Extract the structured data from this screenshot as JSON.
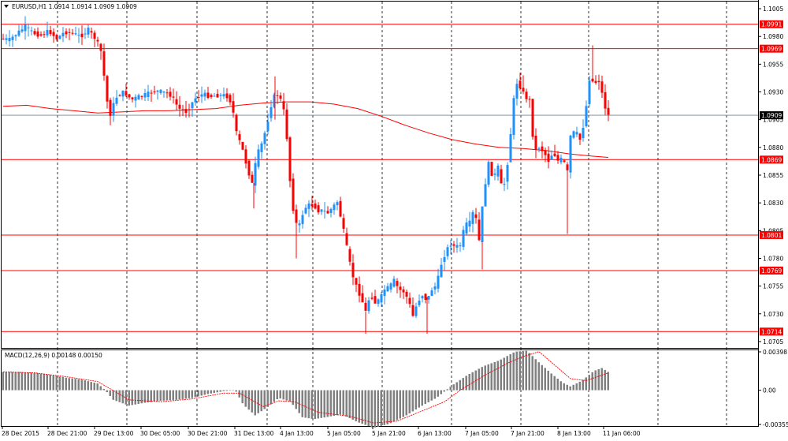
{
  "window_title": "EURUSD,H1  1.0914 1.0914 1.0909 1.0909",
  "chart_data": [
    {
      "type": "candlestick",
      "symbol": "EURUSD,H1",
      "ohlc_label": "1.0914 1.0914 1.0909 1.0909",
      "ylim": [
        1.07,
        1.101
      ],
      "y_ticks": [
        "1.1005",
        "1.0980",
        "1.0955",
        "1.0930",
        "1.0905",
        "1.0880",
        "1.0855",
        "1.0830",
        "1.0805",
        "1.0780",
        "1.0755",
        "1.0730",
        "1.0705"
      ],
      "x_labels": [
        "28 Dec 2015",
        "28 Dec 21:00",
        "29 Dec 13:00",
        "30 Dec 05:00",
        "30 Dec 21:00",
        "31 Dec 13:00",
        "4 Jan 13:00",
        "5 Jan 05:00",
        "5 Jan 21:00",
        "6 Jan 13:00",
        "7 Jan 05:00",
        "7 Jan 21:00",
        "8 Jan 13:00",
        "11 Jan 06:00"
      ],
      "levels": [
        {
          "value": 1.0991,
          "label": "1.0991",
          "color": "#ff0000"
        },
        {
          "value": 1.0969,
          "label": "1.0969",
          "color": "#ff0000"
        },
        {
          "value": 1.0869,
          "label": "1.0869",
          "color": "#ff0000"
        },
        {
          "value": 1.0801,
          "label": "1.0801",
          "color": "#ff0000"
        },
        {
          "value": 1.0769,
          "label": "1.0769",
          "color": "#ff0000"
        },
        {
          "value": 1.0714,
          "label": "1.0714",
          "color": "#ff0000"
        }
      ],
      "current_price": {
        "value": 1.0909,
        "label": "1.0909"
      },
      "moving_average_path": [
        [
          0,
          1.0917
        ],
        [
          30,
          1.0918
        ],
        [
          60,
          1.0915
        ],
        [
          90,
          1.0913
        ],
        [
          120,
          1.0911
        ],
        [
          150,
          1.0912
        ],
        [
          180,
          1.0913
        ],
        [
          210,
          1.0913
        ],
        [
          240,
          1.0914
        ],
        [
          270,
          1.0915
        ],
        [
          300,
          1.0918
        ],
        [
          330,
          1.092
        ],
        [
          360,
          1.0921
        ],
        [
          390,
          1.0921
        ],
        [
          420,
          1.0919
        ],
        [
          450,
          1.0915
        ],
        [
          480,
          1.0908
        ],
        [
          510,
          1.09
        ],
        [
          540,
          1.0893
        ],
        [
          570,
          1.0887
        ],
        [
          600,
          1.0883
        ],
        [
          630,
          1.088
        ],
        [
          660,
          1.0879
        ],
        [
          690,
          1.0877
        ],
        [
          720,
          1.0874
        ],
        [
          750,
          1.0872
        ],
        [
          768,
          1.0871
        ]
      ],
      "price_path": [
        [
          0,
          1.0978
        ],
        [
          10,
          1.0977
        ],
        [
          20,
          1.0983
        ],
        [
          30,
          1.0989
        ],
        [
          40,
          1.0983
        ],
        [
          50,
          1.0981
        ],
        [
          60,
          1.0985
        ],
        [
          70,
          1.0978
        ],
        [
          80,
          1.0984
        ],
        [
          90,
          1.0983
        ],
        [
          100,
          1.098
        ],
        [
          110,
          1.0986
        ],
        [
          120,
          1.0977
        ],
        [
          127,
          1.0965
        ],
        [
          133,
          1.0924
        ],
        [
          138,
          1.091
        ],
        [
          145,
          1.0925
        ],
        [
          155,
          1.093
        ],
        [
          165,
          1.0923
        ],
        [
          175,
          1.0926
        ],
        [
          185,
          1.0928
        ],
        [
          195,
          1.0931
        ],
        [
          205,
          1.093
        ],
        [
          215,
          1.0927
        ],
        [
          225,
          1.0915
        ],
        [
          235,
          1.0912
        ],
        [
          245,
          1.0924
        ],
        [
          255,
          1.0928
        ],
        [
          265,
          1.0926
        ],
        [
          275,
          1.0927
        ],
        [
          285,
          1.0927
        ],
        [
          292,
          1.092
        ],
        [
          298,
          1.0893
        ],
        [
          305,
          1.088
        ],
        [
          312,
          1.0861
        ],
        [
          318,
          1.0847
        ],
        [
          324,
          1.0873
        ],
        [
          330,
          1.0883
        ],
        [
          336,
          1.0898
        ],
        [
          342,
          1.0918
        ],
        [
          348,
          1.093
        ],
        [
          354,
          1.0923
        ],
        [
          360,
          1.0908
        ],
        [
          366,
          1.085
        ],
        [
          372,
          1.0812
        ],
        [
          378,
          1.081
        ],
        [
          384,
          1.0825
        ],
        [
          390,
          1.0828
        ],
        [
          396,
          1.0828
        ],
        [
          402,
          1.0823
        ],
        [
          408,
          1.0823
        ],
        [
          414,
          1.0821
        ],
        [
          420,
          1.0826
        ],
        [
          426,
          1.0831
        ],
        [
          432,
          1.0812
        ],
        [
          438,
          1.079
        ],
        [
          444,
          1.0768
        ],
        [
          450,
          1.0755
        ],
        [
          456,
          1.0745
        ],
        [
          462,
          1.0732
        ],
        [
          468,
          1.0748
        ],
        [
          474,
          1.074
        ],
        [
          480,
          1.0743
        ],
        [
          486,
          1.0752
        ],
        [
          492,
          1.0754
        ],
        [
          498,
          1.076
        ],
        [
          504,
          1.0752
        ],
        [
          510,
          1.075
        ],
        [
          516,
          1.0743
        ],
        [
          522,
          1.0728
        ],
        [
          528,
          1.0741
        ],
        [
          534,
          1.0747
        ],
        [
          540,
          1.0742
        ],
        [
          546,
          1.0752
        ],
        [
          552,
          1.0756
        ],
        [
          558,
          1.0775
        ],
        [
          564,
          1.0787
        ],
        [
          570,
          1.0793
        ],
        [
          576,
          1.079
        ],
        [
          582,
          1.0792
        ],
        [
          588,
          1.081
        ],
        [
          594,
          1.0812
        ],
        [
          600,
          1.0825
        ],
        [
          606,
          1.0796
        ],
        [
          612,
          1.084
        ],
        [
          618,
          1.0865
        ],
        [
          624,
          1.0852
        ],
        [
          630,
          1.0862
        ],
        [
          636,
          1.0838
        ],
        [
          642,
          1.0866
        ],
        [
          648,
          1.0906
        ],
        [
          652,
          1.094
        ],
        [
          658,
          1.0935
        ],
        [
          664,
          1.0926
        ],
        [
          670,
          1.0922
        ],
        [
          676,
          1.0876
        ],
        [
          682,
          1.088
        ],
        [
          688,
          1.0876
        ],
        [
          694,
          1.0868
        ],
        [
          700,
          1.0876
        ],
        [
          706,
          1.0868
        ],
        [
          712,
          1.087
        ],
        [
          718,
          1.0858
        ],
        [
          722,
          1.089
        ],
        [
          728,
          1.0895
        ],
        [
          734,
          1.0887
        ],
        [
          740,
          1.0905
        ],
        [
          746,
          1.0942
        ],
        [
          752,
          1.0938
        ],
        [
          758,
          1.094
        ],
        [
          764,
          1.0923
        ],
        [
          768,
          1.0909
        ]
      ],
      "wicks": [
        [
          345,
          1.0944,
          1.0905
        ],
        [
          318,
          1.0848,
          1.0825
        ],
        [
          372,
          1.081,
          1.078
        ],
        [
          460,
          1.0732,
          1.0712
        ],
        [
          538,
          1.0745,
          1.0712
        ],
        [
          608,
          1.0795,
          1.077
        ],
        [
          716,
          1.086,
          1.0802
        ],
        [
          748,
          1.0972,
          1.094
        ],
        [
          136,
          1.091,
          1.09
        ],
        [
          660,
          1.0945,
          1.093
        ]
      ]
    },
    {
      "type": "bar",
      "title": "MACD(12,26,9) 0.00148 0.00150",
      "ylim": [
        -0.00355,
        0.00398
      ],
      "y_ticks": [
        "0.00398",
        "0.00",
        "-0.00355"
      ],
      "histogram": [
        [
          0,
          0.0019
        ],
        [
          20,
          0.0019
        ],
        [
          40,
          0.0018
        ],
        [
          60,
          0.0016
        ],
        [
          80,
          0.0013
        ],
        [
          100,
          0.0011
        ],
        [
          120,
          0.0007
        ],
        [
          130,
          0.0
        ],
        [
          140,
          -0.001
        ],
        [
          160,
          -0.0016
        ],
        [
          180,
          -0.0013
        ],
        [
          200,
          -0.0011
        ],
        [
          220,
          -0.001
        ],
        [
          240,
          -0.0008
        ],
        [
          260,
          -0.0004
        ],
        [
          280,
          -0.0001
        ],
        [
          295,
          0.0
        ],
        [
          305,
          -0.0015
        ],
        [
          320,
          -0.0026
        ],
        [
          335,
          -0.0018
        ],
        [
          350,
          -0.0008
        ],
        [
          365,
          -0.0012
        ],
        [
          380,
          -0.0028
        ],
        [
          395,
          -0.003
        ],
        [
          410,
          -0.0028
        ],
        [
          430,
          -0.0025
        ],
        [
          450,
          -0.0033
        ],
        [
          470,
          -0.0039
        ],
        [
          490,
          -0.0035
        ],
        [
          510,
          -0.0027
        ],
        [
          530,
          -0.0017
        ],
        [
          550,
          -0.0008
        ],
        [
          570,
          0.0005
        ],
        [
          590,
          0.0016
        ],
        [
          610,
          0.0025
        ],
        [
          630,
          0.0031
        ],
        [
          650,
          0.004
        ],
        [
          665,
          0.0041
        ],
        [
          680,
          0.0029
        ],
        [
          695,
          0.0018
        ],
        [
          710,
          0.0008
        ],
        [
          720,
          0.0004
        ],
        [
          735,
          0.001
        ],
        [
          750,
          0.002
        ],
        [
          760,
          0.0023
        ],
        [
          768,
          0.0019
        ]
      ],
      "signal": [
        [
          0,
          0.0019
        ],
        [
          40,
          0.0018
        ],
        [
          80,
          0.0014
        ],
        [
          120,
          0.0009
        ],
        [
          160,
          -0.001
        ],
        [
          200,
          -0.0012
        ],
        [
          240,
          -0.0009
        ],
        [
          280,
          -0.0003
        ],
        [
          300,
          -0.0003
        ],
        [
          330,
          -0.0017
        ],
        [
          350,
          -0.0011
        ],
        [
          370,
          -0.0012
        ],
        [
          400,
          -0.0023
        ],
        [
          440,
          -0.0027
        ],
        [
          470,
          -0.0034
        ],
        [
          500,
          -0.0032
        ],
        [
          530,
          -0.0022
        ],
        [
          560,
          -0.0012
        ],
        [
          580,
          0.0
        ],
        [
          610,
          0.0015
        ],
        [
          640,
          0.0028
        ],
        [
          660,
          0.0035
        ],
        [
          680,
          0.004
        ],
        [
          700,
          0.0026
        ],
        [
          720,
          0.0012
        ],
        [
          740,
          0.001
        ],
        [
          768,
          0.0018
        ]
      ]
    }
  ],
  "colors": {
    "bull": "#1e90ff",
    "bear": "#ff0000",
    "macd_bar": "#808080",
    "signal": "#ff0000",
    "grid": "#000000"
  }
}
